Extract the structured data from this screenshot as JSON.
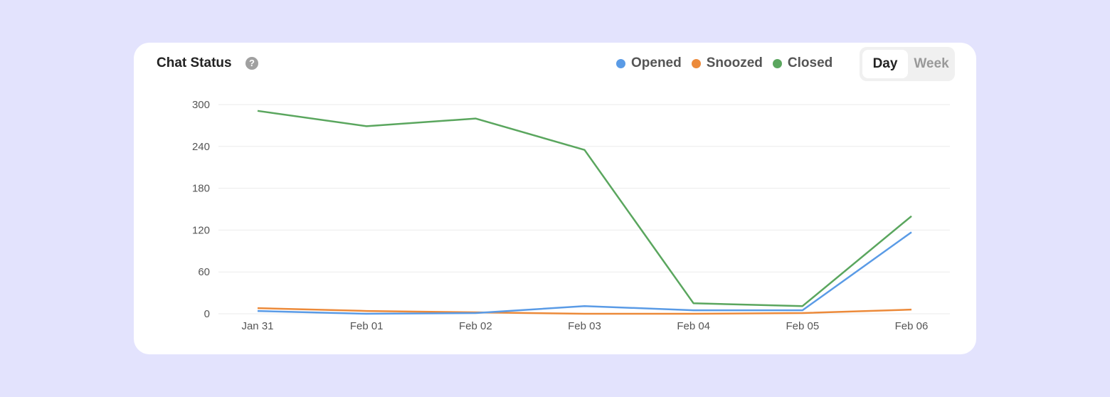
{
  "header": {
    "title": "Chat Status",
    "help_icon": "question-circle-icon"
  },
  "toggle": {
    "day": "Day",
    "week": "Week",
    "selected": "Day"
  },
  "chart_data": {
    "type": "line",
    "title": "Chat Status",
    "categories": [
      "Jan 31",
      "Feb 01",
      "Feb 02",
      "Feb 03",
      "Feb 04",
      "Feb 05",
      "Feb 06"
    ],
    "yticks": [
      "0",
      "60",
      "120",
      "180",
      "240",
      "300"
    ],
    "ylim": [
      0,
      300
    ],
    "grid": true,
    "legend_placement": "top-right",
    "series": [
      {
        "name": "Opened",
        "color": "#5a9be6",
        "values": [
          4,
          0,
          1,
          11,
          5,
          5,
          117
        ]
      },
      {
        "name": "Snoozed",
        "color": "#ec8a3a",
        "values": [
          8,
          4,
          2,
          0,
          0,
          1,
          6
        ]
      },
      {
        "name": "Closed",
        "color": "#5aa65e",
        "values": [
          291,
          269,
          280,
          235,
          15,
          11,
          140
        ]
      }
    ]
  }
}
